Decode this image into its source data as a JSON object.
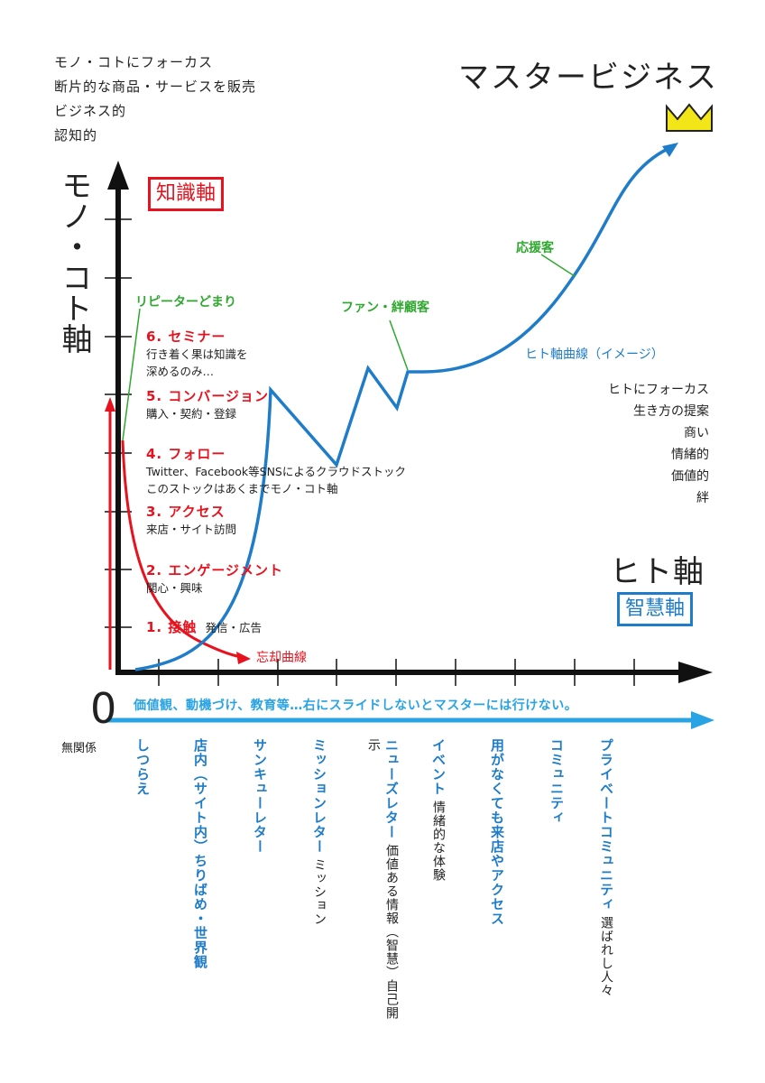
{
  "top_left": [
    "モノ・コトにフォーカス",
    "断片的な商品・サービスを販売",
    "ビジネス的",
    "認知的"
  ],
  "title": "マスタービジネス",
  "chishiki_box": "知識軸",
  "y_axis_label": "モノ・コト軸",
  "x_axis_label": "ヒト軸",
  "chie_box": "智慧軸",
  "zero": "0",
  "mukankei": "無関係",
  "repeater_label": "リピーターどまり",
  "steps": [
    {
      "title": "6. セミナー",
      "desc1": "行き着く果は知識を",
      "desc2": "深めるのみ…"
    },
    {
      "title": "5. コンバージョン",
      "desc1": "購入・契約・登録",
      "desc2": ""
    },
    {
      "title": "4. フォロー",
      "desc1": "Twitter、Facebook等SNSによるクラウドストック",
      "desc2": "このストックはあくまでモノ・コト軸"
    },
    {
      "title": "3. アクセス",
      "desc1": "来店・サイト訪問",
      "desc2": ""
    },
    {
      "title": "2. エンゲージメント",
      "desc1": "関心・興味",
      "desc2": ""
    },
    {
      "title": "1. 接触",
      "desc1": "発信・広告",
      "desc2": ""
    }
  ],
  "forgetting_curve": "忘却曲線",
  "fan_label": "ファン・絆顧客",
  "ouen_label": "応援客",
  "hito_curve_label": "ヒト軸曲線（イメージ）",
  "right_list": [
    "ヒトにフォーカス",
    "生き方の提案",
    "商い",
    "情緒的",
    "価値的",
    "絆"
  ],
  "banner": "価値観、動機づけ、教育等…右にスライドしないとマスターには行けない。",
  "columns": [
    {
      "main": "しつらえ",
      "sub": ""
    },
    {
      "main": "店内（サイト内）ちりばめ・世界観",
      "sub": ""
    },
    {
      "main": "サンキューレター",
      "sub": ""
    },
    {
      "main": "ミッションレター",
      "sub": "ミッション"
    },
    {
      "main": "ニューズレター",
      "sub": "価値ある情報（智慧）自己開示"
    },
    {
      "main": "イベント",
      "sub": "情緒的な体験"
    },
    {
      "main": "用がなくても来店やアクセス",
      "sub": ""
    },
    {
      "main": "コミュニティ",
      "sub": ""
    },
    {
      "main": "プライベートコミュニティ",
      "sub": "選ばれし人々"
    }
  ],
  "colors": {
    "red": "#e8121e",
    "blue": "#1f7cc8",
    "light_blue": "#29a3e3",
    "green": "#2fa82f",
    "crown": "#f2e619"
  }
}
